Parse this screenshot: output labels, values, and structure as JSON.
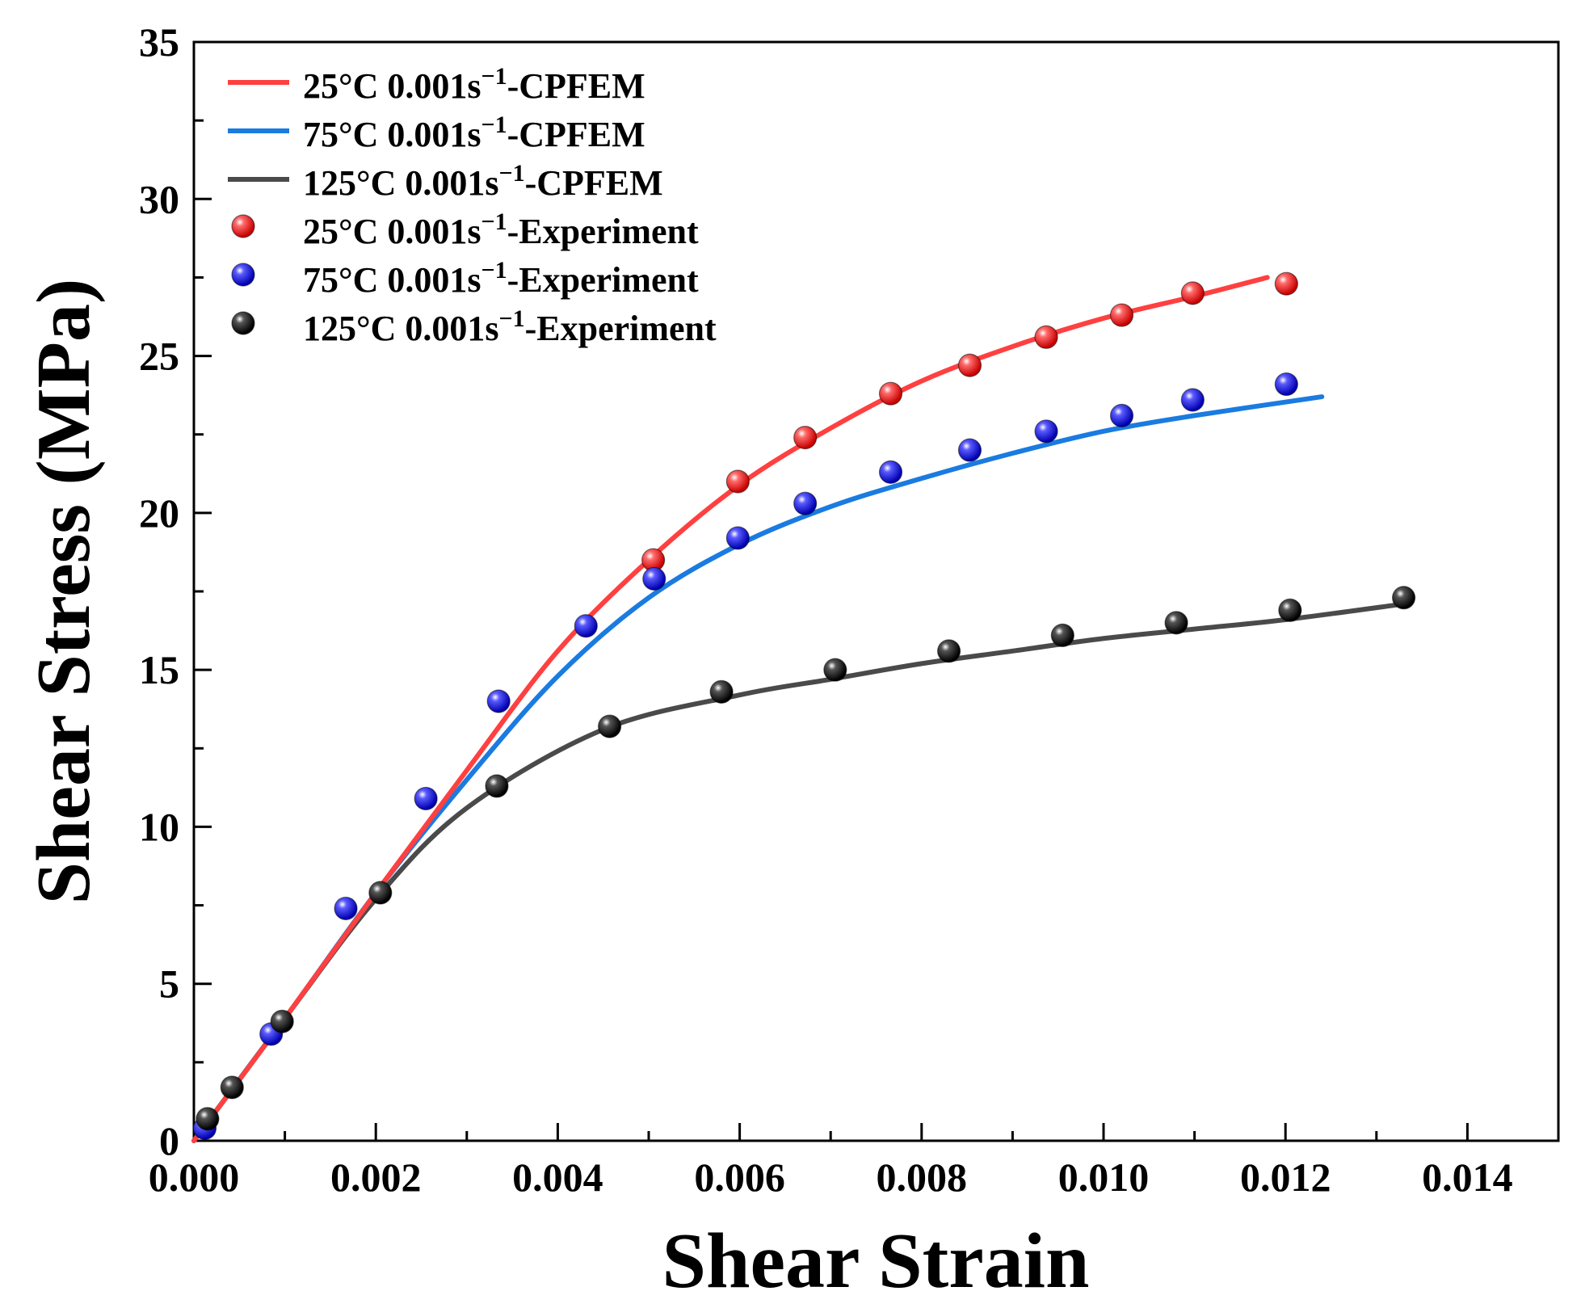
{
  "chart_data": {
    "type": "line",
    "title": "",
    "xlabel": "Shear Strain",
    "ylabel": "Shear Stress (MPa)",
    "xlim": [
      0.0,
      0.015
    ],
    "ylim": [
      0,
      35
    ],
    "x_ticks": [
      0.0,
      0.002,
      0.004,
      0.006,
      0.008,
      0.01,
      0.012,
      0.014
    ],
    "x_tick_labels": [
      "0.000",
      "0.002",
      "0.004",
      "0.006",
      "0.008",
      "0.010",
      "0.012",
      "0.014"
    ],
    "y_ticks": [
      0,
      5,
      10,
      15,
      20,
      25,
      30,
      35
    ],
    "y_tick_labels": [
      "0",
      "5",
      "10",
      "15",
      "20",
      "25",
      "30",
      "35"
    ],
    "grid": false,
    "legend_position": "top-left",
    "series": [
      {
        "name": "25°C 0.001s⁻¹-CPFEM",
        "label_parts": [
          "25°C 0.001s",
          "−1",
          "-CPFEM"
        ],
        "kind": "line",
        "color": "#ff4040",
        "x": [
          0.0,
          0.001,
          0.002,
          0.003,
          0.004,
          0.005,
          0.006,
          0.007,
          0.008,
          0.009,
          0.01,
          0.011,
          0.0118
        ],
        "y": [
          0.0,
          3.9,
          7.9,
          11.8,
          15.6,
          18.5,
          20.9,
          22.7,
          24.2,
          25.3,
          26.2,
          26.9,
          27.5
        ]
      },
      {
        "name": "75°C 0.001s⁻¹-CPFEM",
        "label_parts": [
          "75°C 0.001s",
          "−1",
          "-CPFEM"
        ],
        "kind": "line",
        "color": "#1a7be0",
        "x": [
          0.0,
          0.001,
          0.002,
          0.003,
          0.004,
          0.005,
          0.006,
          0.007,
          0.008,
          0.009,
          0.01,
          0.011,
          0.0124
        ],
        "y": [
          0.0,
          3.9,
          7.9,
          11.5,
          14.8,
          17.3,
          19.0,
          20.2,
          21.1,
          21.9,
          22.6,
          23.1,
          23.7
        ]
      },
      {
        "name": "125°C 0.001s⁻¹-CPFEM",
        "label_parts": [
          "125°C 0.001s",
          "−1",
          "-CPFEM"
        ],
        "kind": "line",
        "color": "#4a4a4a",
        "x": [
          0.0,
          0.001,
          0.002,
          0.003,
          0.0045,
          0.006,
          0.007,
          0.008,
          0.009,
          0.01,
          0.011,
          0.012,
          0.0133
        ],
        "y": [
          0.0,
          3.9,
          7.7,
          10.6,
          13.1,
          14.2,
          14.7,
          15.2,
          15.6,
          16.0,
          16.3,
          16.6,
          17.1
        ]
      },
      {
        "name": "25°C 0.001s⁻¹-Experiment",
        "label_parts": [
          "25°C 0.001s",
          "−1",
          "-Experiment"
        ],
        "kind": "scatter",
        "color": "#ff2020",
        "x": [
          0.00505,
          0.00598,
          0.00672,
          0.00766,
          0.00853,
          0.00937,
          0.0102,
          0.01098,
          0.01201
        ],
        "y": [
          18.5,
          21.0,
          22.4,
          23.8,
          24.7,
          25.6,
          26.3,
          27.0,
          27.3
        ]
      },
      {
        "name": "75°C 0.001s⁻¹-Experiment",
        "label_parts": [
          "75°C 0.001s",
          "−1",
          "-Experiment"
        ],
        "kind": "scatter",
        "color": "#2020ee",
        "x": [
          0.00012,
          0.00085,
          0.00167,
          0.00255,
          0.00335,
          0.00431,
          0.00506,
          0.00598,
          0.00672,
          0.00766,
          0.00853,
          0.00937,
          0.0102,
          0.01098,
          0.01201
        ],
        "y": [
          0.4,
          3.4,
          7.4,
          10.9,
          14.0,
          16.4,
          17.9,
          19.2,
          20.3,
          21.3,
          22.0,
          22.6,
          23.1,
          23.6,
          24.1
        ]
      },
      {
        "name": "125°C 0.001s⁻¹-Experiment",
        "label_parts": [
          "125°C 0.001s",
          "−1",
          "-Experiment"
        ],
        "kind": "scatter",
        "color": "#111111",
        "x": [
          0.00015,
          0.00042,
          0.00097,
          0.00205,
          0.00333,
          0.00457,
          0.0058,
          0.00705,
          0.0083,
          0.00955,
          0.0108,
          0.01205,
          0.0133
        ],
        "y": [
          0.7,
          1.7,
          3.8,
          7.9,
          11.3,
          13.2,
          14.3,
          15.0,
          15.6,
          16.1,
          16.5,
          16.9,
          17.3
        ]
      }
    ]
  }
}
